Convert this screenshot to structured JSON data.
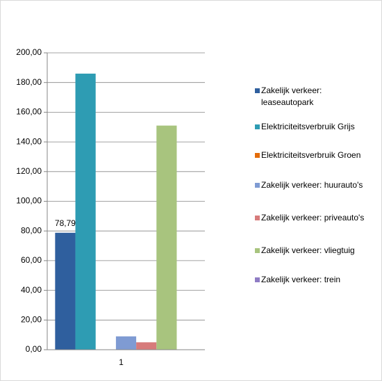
{
  "chart_data": {
    "type": "bar",
    "categories": [
      "1"
    ],
    "series": [
      {
        "name": "Zakelijk verkeer: leaseautopark",
        "color": "#2f5f9e",
        "values": [
          78.79
        ],
        "value_labels": [
          "78,79"
        ]
      },
      {
        "name": "Elektriciteitsverbruik Grijs",
        "color": "#2e9cb3",
        "values": [
          186
        ]
      },
      {
        "name": "Elektriciteitsverbruik Groen",
        "color": "#e36c0a",
        "values": [
          0
        ]
      },
      {
        "name": "Zakelijk verkeer: huurauto's",
        "color": "#7f9bd3",
        "values": [
          9
        ]
      },
      {
        "name": "Zakelijk verkeer: priveauto's",
        "color": "#d77b7b",
        "values": [
          5
        ]
      },
      {
        "name": "Zakelijk verkeer: vliegtuig",
        "color": "#a8c47e",
        "values": [
          151
        ]
      },
      {
        "name": "Zakelijk verkeer: trein",
        "color": "#8f7cc4",
        "values": [
          0
        ]
      }
    ],
    "ylim": [
      0,
      200
    ],
    "yticks": [
      {
        "value": 0,
        "label": "0,00"
      },
      {
        "value": 20,
        "label": "20,00"
      },
      {
        "value": 40,
        "label": "40,00"
      },
      {
        "value": 60,
        "label": "60,00"
      },
      {
        "value": 80,
        "label": "80,00"
      },
      {
        "value": 100,
        "label": "100,00"
      },
      {
        "value": 120,
        "label": "120,00"
      },
      {
        "value": 140,
        "label": "140,00"
      },
      {
        "value": 160,
        "label": "160,00"
      },
      {
        "value": 180,
        "label": "180,00"
      },
      {
        "value": 200,
        "label": "200,00"
      }
    ],
    "grid": true
  }
}
